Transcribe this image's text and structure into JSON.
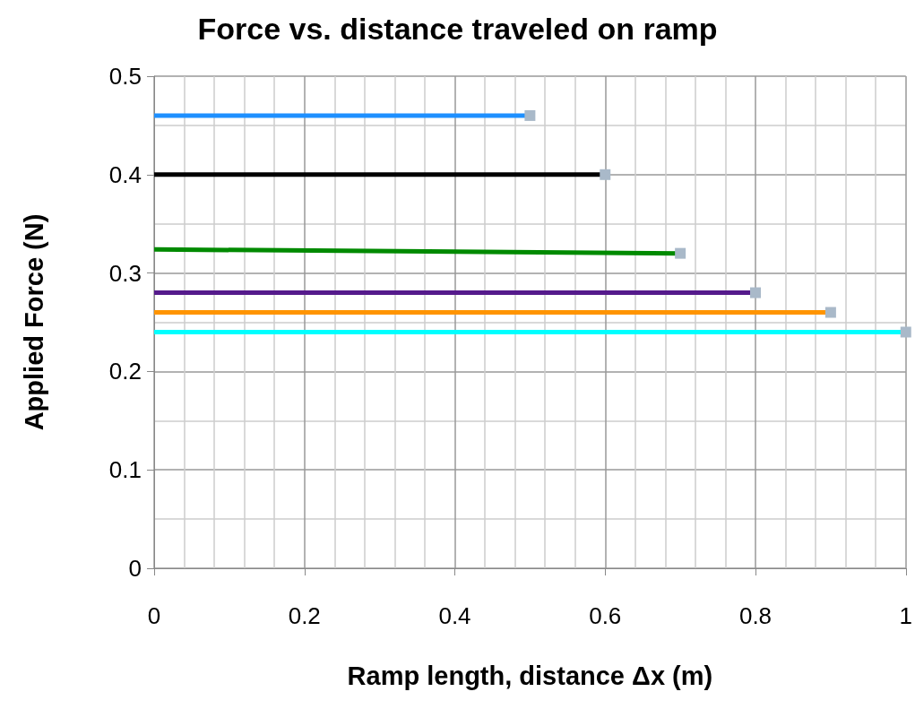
{
  "chart_data": {
    "type": "line",
    "title": "Force vs. distance traveled on ramp",
    "xlabel": "Ramp length, distance Δx (m)",
    "ylabel": "Applied Force (N)",
    "xlim": [
      0,
      1
    ],
    "xticks": [
      0,
      0.2,
      0.4,
      0.6,
      0.8,
      1
    ],
    "ylim": [
      0,
      0.5
    ],
    "yticks": [
      0,
      0.1,
      0.2,
      0.3,
      0.4,
      0.5
    ],
    "grid": true,
    "marker": "square",
    "line_style": "solid",
    "series": [
      {
        "color": "#1e90ff",
        "x": [
          0,
          0.5
        ],
        "values": [
          0.46,
          0.46
        ]
      },
      {
        "color": "#000000",
        "x": [
          0,
          0.6
        ],
        "values": [
          0.4,
          0.4
        ]
      },
      {
        "color": "#008a00",
        "x": [
          0,
          0.7
        ],
        "values": [
          0.324,
          0.32
        ]
      },
      {
        "color": "#551a8b",
        "x": [
          0,
          0.8
        ],
        "values": [
          0.28,
          0.28
        ]
      },
      {
        "color": "#ff9400",
        "x": [
          0,
          0.9
        ],
        "values": [
          0.26,
          0.26
        ]
      },
      {
        "color": "#00ffff",
        "x": [
          0,
          1
        ],
        "values": [
          0.24,
          0.24
        ]
      }
    ]
  }
}
